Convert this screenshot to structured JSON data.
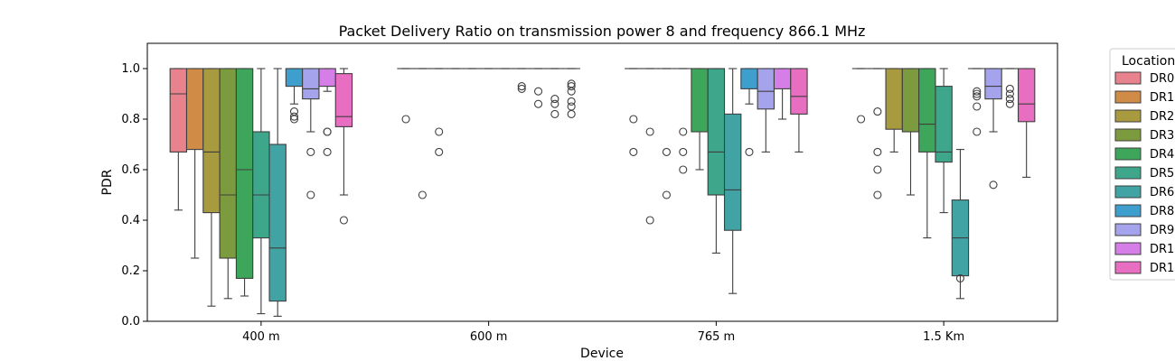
{
  "chart_data": {
    "type": "boxplot",
    "title": "Packet Delivery Ratio on transmission power 8 and frequency 866.1 MHz",
    "xlabel": "Device",
    "ylabel": "PDR",
    "ylim": [
      0,
      1.1
    ],
    "yticks": [
      "0.0",
      "0.2",
      "0.4",
      "0.6",
      "0.8",
      "1.0"
    ],
    "categories": [
      "400 m",
      "600 m",
      "765 m",
      "1.5 Km"
    ],
    "legend": {
      "title": "Location",
      "placement": "outside-right"
    },
    "series": [
      {
        "name": "DR0",
        "color": "#e8838d",
        "boxes": [
          {
            "q1": 0.67,
            "med": 0.9,
            "q3": 1.0,
            "lo": 0.44,
            "hi": 1.0,
            "out": []
          },
          {
            "q1": 1.0,
            "med": 1.0,
            "q3": 1.0,
            "lo": 1.0,
            "hi": 1.0,
            "out": [
              0.8
            ]
          },
          {
            "q1": 1.0,
            "med": 1.0,
            "q3": 1.0,
            "lo": 1.0,
            "hi": 1.0,
            "out": [
              0.8,
              0.67
            ]
          },
          {
            "q1": 1.0,
            "med": 1.0,
            "q3": 1.0,
            "lo": 1.0,
            "hi": 1.0,
            "out": [
              0.8
            ]
          }
        ]
      },
      {
        "name": "DR1",
        "color": "#d08b47",
        "boxes": [
          {
            "q1": 0.68,
            "med": 1.0,
            "q3": 1.0,
            "lo": 0.25,
            "hi": 1.0,
            "out": []
          },
          {
            "q1": 1.0,
            "med": 1.0,
            "q3": 1.0,
            "lo": 1.0,
            "hi": 1.0,
            "out": [
              0.5
            ]
          },
          {
            "q1": 1.0,
            "med": 1.0,
            "q3": 1.0,
            "lo": 1.0,
            "hi": 1.0,
            "out": [
              0.75,
              0.4
            ]
          },
          {
            "q1": 1.0,
            "med": 1.0,
            "q3": 1.0,
            "lo": 1.0,
            "hi": 1.0,
            "out": [
              0.83,
              0.67,
              0.6,
              0.5
            ]
          }
        ]
      },
      {
        "name": "DR2",
        "color": "#a89a3e",
        "boxes": [
          {
            "q1": 0.43,
            "med": 0.67,
            "q3": 1.0,
            "lo": 0.06,
            "hi": 1.0,
            "out": []
          },
          {
            "q1": 1.0,
            "med": 1.0,
            "q3": 1.0,
            "lo": 1.0,
            "hi": 1.0,
            "out": [
              0.75,
              0.67
            ]
          },
          {
            "q1": 1.0,
            "med": 1.0,
            "q3": 1.0,
            "lo": 1.0,
            "hi": 1.0,
            "out": [
              0.67,
              0.5
            ]
          },
          {
            "q1": 0.76,
            "med": 1.0,
            "q3": 1.0,
            "lo": 0.67,
            "hi": 1.0,
            "out": []
          }
        ]
      },
      {
        "name": "DR3",
        "color": "#7c9a3e",
        "boxes": [
          {
            "q1": 0.25,
            "med": 0.5,
            "q3": 1.0,
            "lo": 0.09,
            "hi": 1.0,
            "out": []
          },
          {
            "q1": 1.0,
            "med": 1.0,
            "q3": 1.0,
            "lo": 1.0,
            "hi": 1.0,
            "out": []
          },
          {
            "q1": 1.0,
            "med": 1.0,
            "q3": 1.0,
            "lo": 1.0,
            "hi": 1.0,
            "out": [
              0.75,
              0.67,
              0.6
            ]
          },
          {
            "q1": 0.75,
            "med": 1.0,
            "q3": 1.0,
            "lo": 0.5,
            "hi": 1.0,
            "out": []
          }
        ]
      },
      {
        "name": "DR4",
        "color": "#3ea65a",
        "boxes": [
          {
            "q1": 0.17,
            "med": 0.6,
            "q3": 1.0,
            "lo": 0.1,
            "hi": 1.0,
            "out": []
          },
          {
            "q1": 1.0,
            "med": 1.0,
            "q3": 1.0,
            "lo": 1.0,
            "hi": 1.0,
            "out": []
          },
          {
            "q1": 0.75,
            "med": 1.0,
            "q3": 1.0,
            "lo": 0.6,
            "hi": 1.0,
            "out": []
          },
          {
            "q1": 0.67,
            "med": 0.78,
            "q3": 1.0,
            "lo": 0.33,
            "hi": 1.0,
            "out": []
          }
        ]
      },
      {
        "name": "DR5",
        "color": "#3ea68a",
        "boxes": [
          {
            "q1": 0.33,
            "med": 0.5,
            "q3": 0.75,
            "lo": 0.03,
            "hi": 1.0,
            "out": []
          },
          {
            "q1": 1.0,
            "med": 1.0,
            "q3": 1.0,
            "lo": 1.0,
            "hi": 1.0,
            "out": []
          },
          {
            "q1": 0.5,
            "med": 0.67,
            "q3": 1.0,
            "lo": 0.27,
            "hi": 1.0,
            "out": []
          },
          {
            "q1": 0.63,
            "med": 0.67,
            "q3": 0.93,
            "lo": 0.43,
            "hi": 1.0,
            "out": []
          }
        ]
      },
      {
        "name": "DR6",
        "color": "#41a3a3",
        "boxes": [
          {
            "q1": 0.08,
            "med": 0.29,
            "q3": 0.7,
            "lo": 0.02,
            "hi": 1.0,
            "out": []
          },
          {
            "q1": 1.0,
            "med": 1.0,
            "q3": 1.0,
            "lo": 1.0,
            "hi": 1.0,
            "out": []
          },
          {
            "q1": 0.36,
            "med": 0.52,
            "q3": 0.82,
            "lo": 0.11,
            "hi": 1.0,
            "out": []
          },
          {
            "q1": 0.18,
            "med": 0.33,
            "q3": 0.48,
            "lo": 0.09,
            "hi": 0.68,
            "out": [
              0.17
            ]
          }
        ]
      },
      {
        "name": "DR8",
        "color": "#3e9fce",
        "boxes": [
          {
            "q1": 0.93,
            "med": 1.0,
            "q3": 1.0,
            "lo": 0.86,
            "hi": 1.0,
            "out": [
              0.83,
              0.81,
              0.8
            ]
          },
          {
            "q1": 1.0,
            "med": 1.0,
            "q3": 1.0,
            "lo": 1.0,
            "hi": 1.0,
            "out": [
              0.93,
              0.92
            ]
          },
          {
            "q1": 0.92,
            "med": 1.0,
            "q3": 1.0,
            "lo": 0.86,
            "hi": 1.0,
            "out": [
              0.67
            ]
          },
          {
            "q1": 1.0,
            "med": 1.0,
            "q3": 1.0,
            "lo": 1.0,
            "hi": 1.0,
            "out": [
              0.91,
              0.9,
              0.89,
              0.85,
              0.75
            ]
          }
        ]
      },
      {
        "name": "DR9",
        "color": "#a5a3eb",
        "boxes": [
          {
            "q1": 0.88,
            "med": 0.92,
            "q3": 1.0,
            "lo": 0.75,
            "hi": 1.0,
            "out": [
              0.67,
              0.5
            ]
          },
          {
            "q1": 1.0,
            "med": 1.0,
            "q3": 1.0,
            "lo": 1.0,
            "hi": 1.0,
            "out": [
              0.91,
              0.86
            ]
          },
          {
            "q1": 0.84,
            "med": 0.91,
            "q3": 1.0,
            "lo": 0.67,
            "hi": 1.0,
            "out": []
          },
          {
            "q1": 0.88,
            "med": 0.93,
            "q3": 1.0,
            "lo": 0.75,
            "hi": 1.0,
            "out": [
              0.54
            ]
          }
        ]
      },
      {
        "name": "DR1",
        "color": "#d67ee8",
        "boxes": [
          {
            "q1": 0.93,
            "med": 1.0,
            "q3": 1.0,
            "lo": 0.91,
            "hi": 1.0,
            "out": [
              0.75,
              0.75,
              0.67
            ]
          },
          {
            "q1": 1.0,
            "med": 1.0,
            "q3": 1.0,
            "lo": 1.0,
            "hi": 1.0,
            "out": [
              0.88,
              0.86,
              0.82
            ]
          },
          {
            "q1": 0.92,
            "med": 1.0,
            "q3": 1.0,
            "lo": 0.8,
            "hi": 1.0,
            "out": []
          },
          {
            "q1": 1.0,
            "med": 1.0,
            "q3": 1.0,
            "lo": 1.0,
            "hi": 1.0,
            "out": [
              0.92,
              0.9,
              0.88,
              0.86
            ]
          }
        ]
      },
      {
        "name": "DR1",
        "color": "#e76ec0",
        "boxes": [
          {
            "q1": 0.77,
            "med": 0.81,
            "q3": 0.98,
            "lo": 0.5,
            "hi": 1.0,
            "out": [
              0.4
            ]
          },
          {
            "q1": 1.0,
            "med": 1.0,
            "q3": 1.0,
            "lo": 1.0,
            "hi": 1.0,
            "out": [
              0.94,
              0.93,
              0.91,
              0.87,
              0.85,
              0.82
            ]
          },
          {
            "q1": 0.82,
            "med": 0.89,
            "q3": 1.0,
            "lo": 0.67,
            "hi": 1.0,
            "out": []
          },
          {
            "q1": 0.79,
            "med": 0.86,
            "q3": 1.0,
            "lo": 0.57,
            "hi": 1.0,
            "out": []
          }
        ]
      }
    ]
  }
}
